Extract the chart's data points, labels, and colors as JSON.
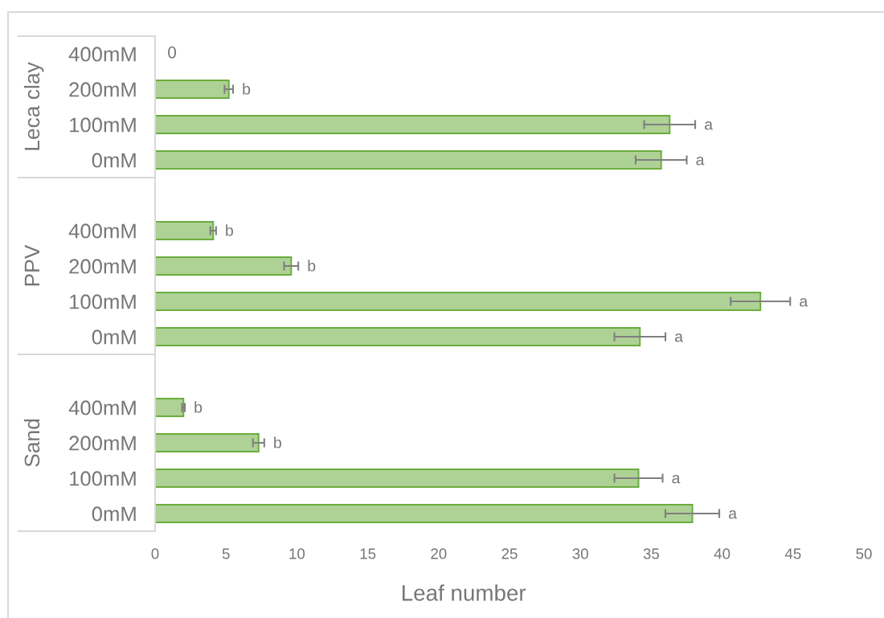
{
  "chart_data": [
    {
      "type": "bar",
      "orientation": "horizontal",
      "ylabel": "Leca clay",
      "categories": [
        "400mM",
        "200mM",
        "100mM",
        "0mM"
      ],
      "values": [
        0,
        5.2,
        36.3,
        35.7
      ],
      "errors": [
        null,
        0.3,
        1.8,
        1.8
      ],
      "value_labels": [
        "0",
        null,
        null,
        null
      ],
      "color": "#aed196",
      "xlim": [
        0,
        50
      ],
      "xticks": [
        0,
        5,
        10,
        15,
        20,
        25,
        30,
        35,
        40,
        45,
        50
      ],
      "tick_labels": "y",
      "annotations": [
        {
          "text": "b",
          "x": 5.2,
          "y": "200mM"
        },
        {
          "text": "a",
          "x": 36.3,
          "y": "100mM"
        },
        {
          "text": "a",
          "x": 35.7,
          "y": "0mM"
        }
      ]
    },
    {
      "type": "bar",
      "orientation": "horizontal",
      "ylabel": "PPV",
      "categories": [
        null,
        "400mM",
        "200mM",
        "100mM",
        "0mM"
      ],
      "values": [
        null,
        4.1,
        9.6,
        42.7,
        34.2
      ],
      "errors": [
        null,
        0.2,
        0.5,
        2.1,
        1.8
      ],
      "color": "#aed196",
      "xlim": [
        0,
        50
      ],
      "xticks": [
        0,
        5,
        10,
        15,
        20,
        25,
        30,
        35,
        40,
        45,
        50
      ],
      "tick_labels": "y",
      "annotations": [
        {
          "text": "b",
          "x": 4.1,
          "y": "400mM"
        },
        {
          "text": "b",
          "x": 9.6,
          "y": "200mM"
        },
        {
          "text": "a",
          "x": 42.7,
          "y": "100mM"
        },
        {
          "text": "a",
          "x": 34.2,
          "y": "0mM"
        }
      ]
    },
    {
      "type": "bar",
      "orientation": "horizontal",
      "ylabel": "Sand",
      "xlabel": "Leaf number",
      "categories": [
        null,
        "400mM",
        "200mM",
        "100mM",
        "0mM"
      ],
      "values": [
        null,
        2.0,
        7.3,
        34.1,
        37.9
      ],
      "errors": [
        null,
        0.1,
        0.4,
        1.7,
        1.9
      ],
      "color": "#aed196",
      "xlim": [
        0,
        50
      ],
      "xticks": [
        0,
        5,
        10,
        15,
        20,
        25,
        30,
        35,
        40,
        45,
        50
      ],
      "annotations": [
        {
          "text": "b",
          "x": 2.0,
          "y": "400mM"
        },
        {
          "text": "b",
          "x": 7.3,
          "y": "200mM"
        },
        {
          "text": "a",
          "x": 34.1,
          "y": "100mM"
        },
        {
          "text": "a",
          "x": 37.9,
          "y": "0mM"
        }
      ]
    }
  ]
}
